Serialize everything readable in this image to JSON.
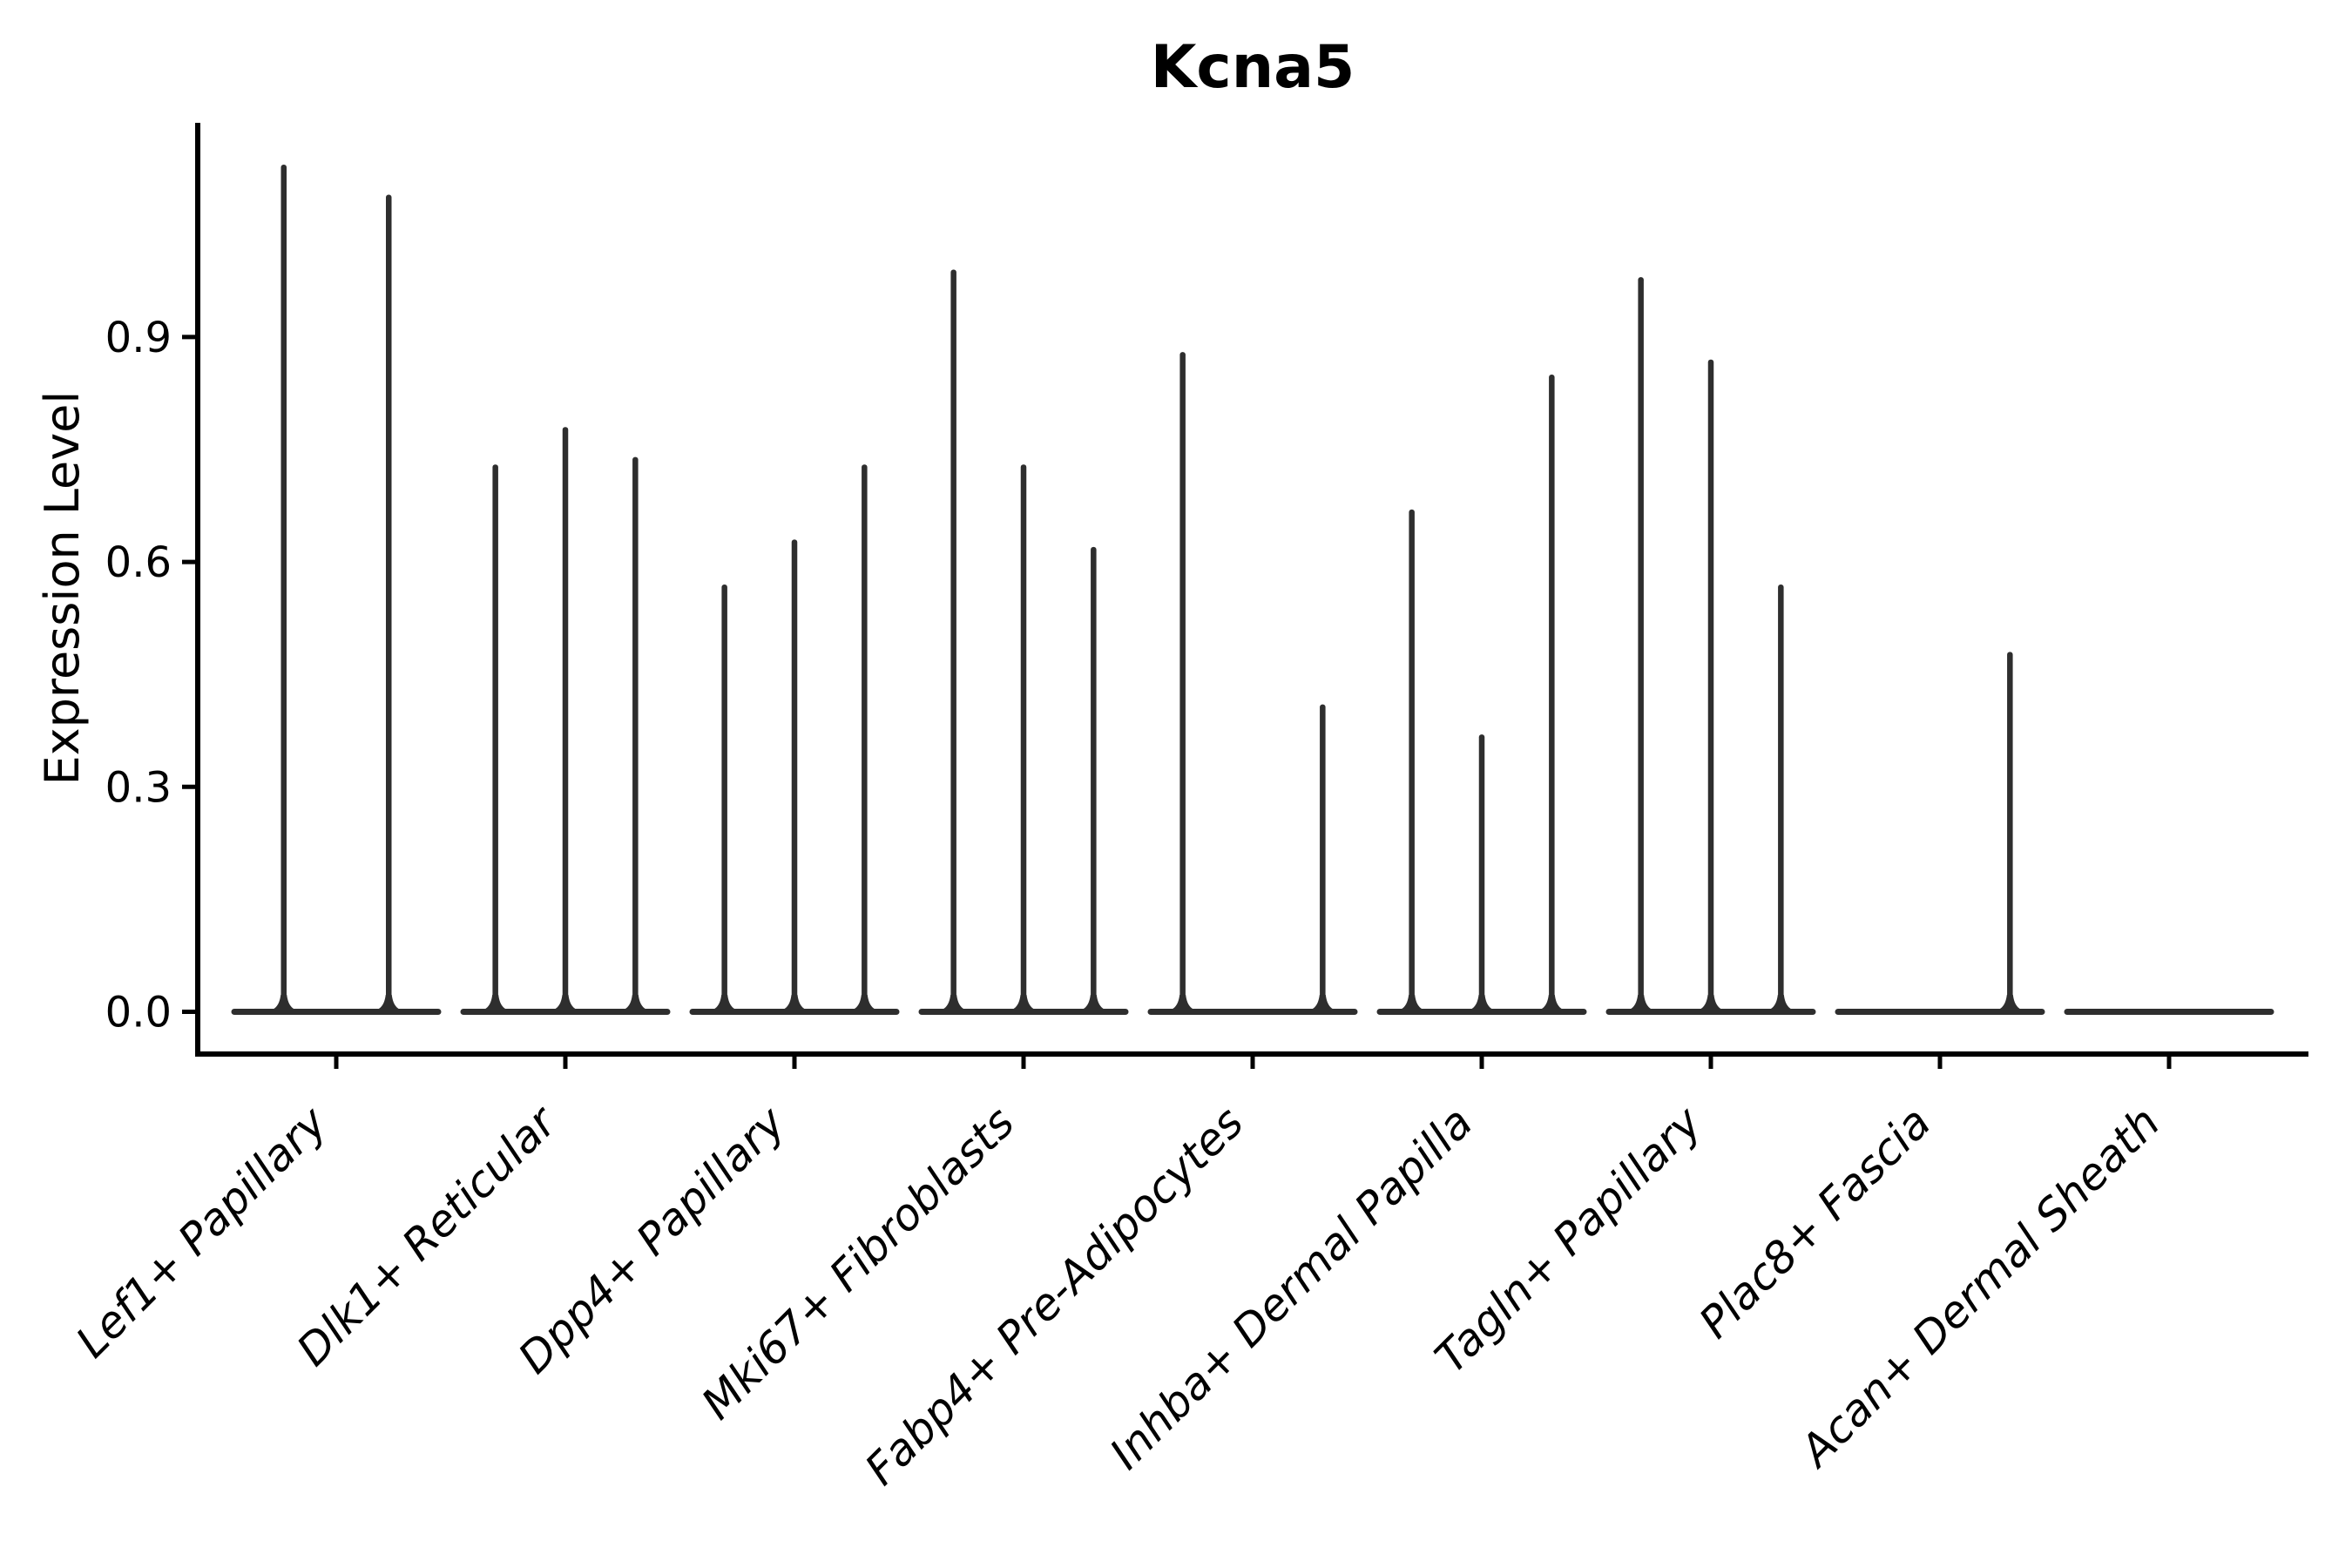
{
  "figure": {
    "title": "Kcna5",
    "y_axis": {
      "label": "Expression Level",
      "ticks": [
        "0.0",
        "0.3",
        "0.6",
        "0.9"
      ]
    },
    "x_axis": {
      "categories": [
        "Lef1+ Papillary",
        "Dlk1+ Reticular",
        "Dpp4+ Papillary",
        "Mki67+ Fibroblasts",
        "Fabp4+ Pre-Adipocytes",
        "Inhba+ Dermal Papilla",
        "Tagln+ Papillary",
        "Plac8+ Fascia",
        "Acan+ Dermal Sheath"
      ]
    }
  },
  "chart_data": {
    "type": "violin",
    "title": "Kcna5",
    "xlabel": "",
    "ylabel": "Expression Level",
    "ylim": [
      -0.06,
      1.19
    ],
    "yticks": [
      0.0,
      0.3,
      0.6,
      0.9
    ],
    "grid": false,
    "legend_position": "none",
    "violin_color": "#2e2e2e",
    "description": "Single-cell expression violin plot; each category shows flat needle-like violins: bodies collapsed at 0 expression with thin spikes reaching the maximum expression value per sub-violin.",
    "categories": [
      "Lef1+ Papillary",
      "Dlk1+ Reticular",
      "Dpp4+ Papillary",
      "Mki67+ Fibroblasts",
      "Fabp4+ Pre-Adipocytes",
      "Inhba+ Dermal Papilla",
      "Tagln+ Papillary",
      "Plac8+ Fascia",
      "Acan+ Dermal Sheath"
    ],
    "groups": [
      {
        "category": "Lef1+ Papillary",
        "violin_max_values": [
          1.13,
          1.09
        ]
      },
      {
        "category": "Dlk1+ Reticular",
        "violin_max_values": [
          0.73,
          0.78,
          0.74
        ]
      },
      {
        "category": "Dpp4+ Papillary",
        "violin_max_values": [
          0.57,
          0.63,
          0.73
        ]
      },
      {
        "category": "Mki67+ Fibroblasts",
        "violin_max_values": [
          0.99,
          0.73,
          0.62
        ]
      },
      {
        "category": "Fabp4+ Pre-Adipocytes",
        "violin_max_values": [
          0.88,
          0.0,
          0.41
        ]
      },
      {
        "category": "Inhba+ Dermal Papilla",
        "violin_max_values": [
          0.67,
          0.37,
          0.85
        ]
      },
      {
        "category": "Tagln+ Papillary",
        "violin_max_values": [
          0.98,
          0.87,
          0.57
        ]
      },
      {
        "category": "Plac8+ Fascia",
        "violin_max_values": [
          0.0,
          0.0,
          0.48
        ]
      },
      {
        "category": "Acan+ Dermal Sheath",
        "violin_max_values": [
          0.0
        ]
      }
    ]
  }
}
